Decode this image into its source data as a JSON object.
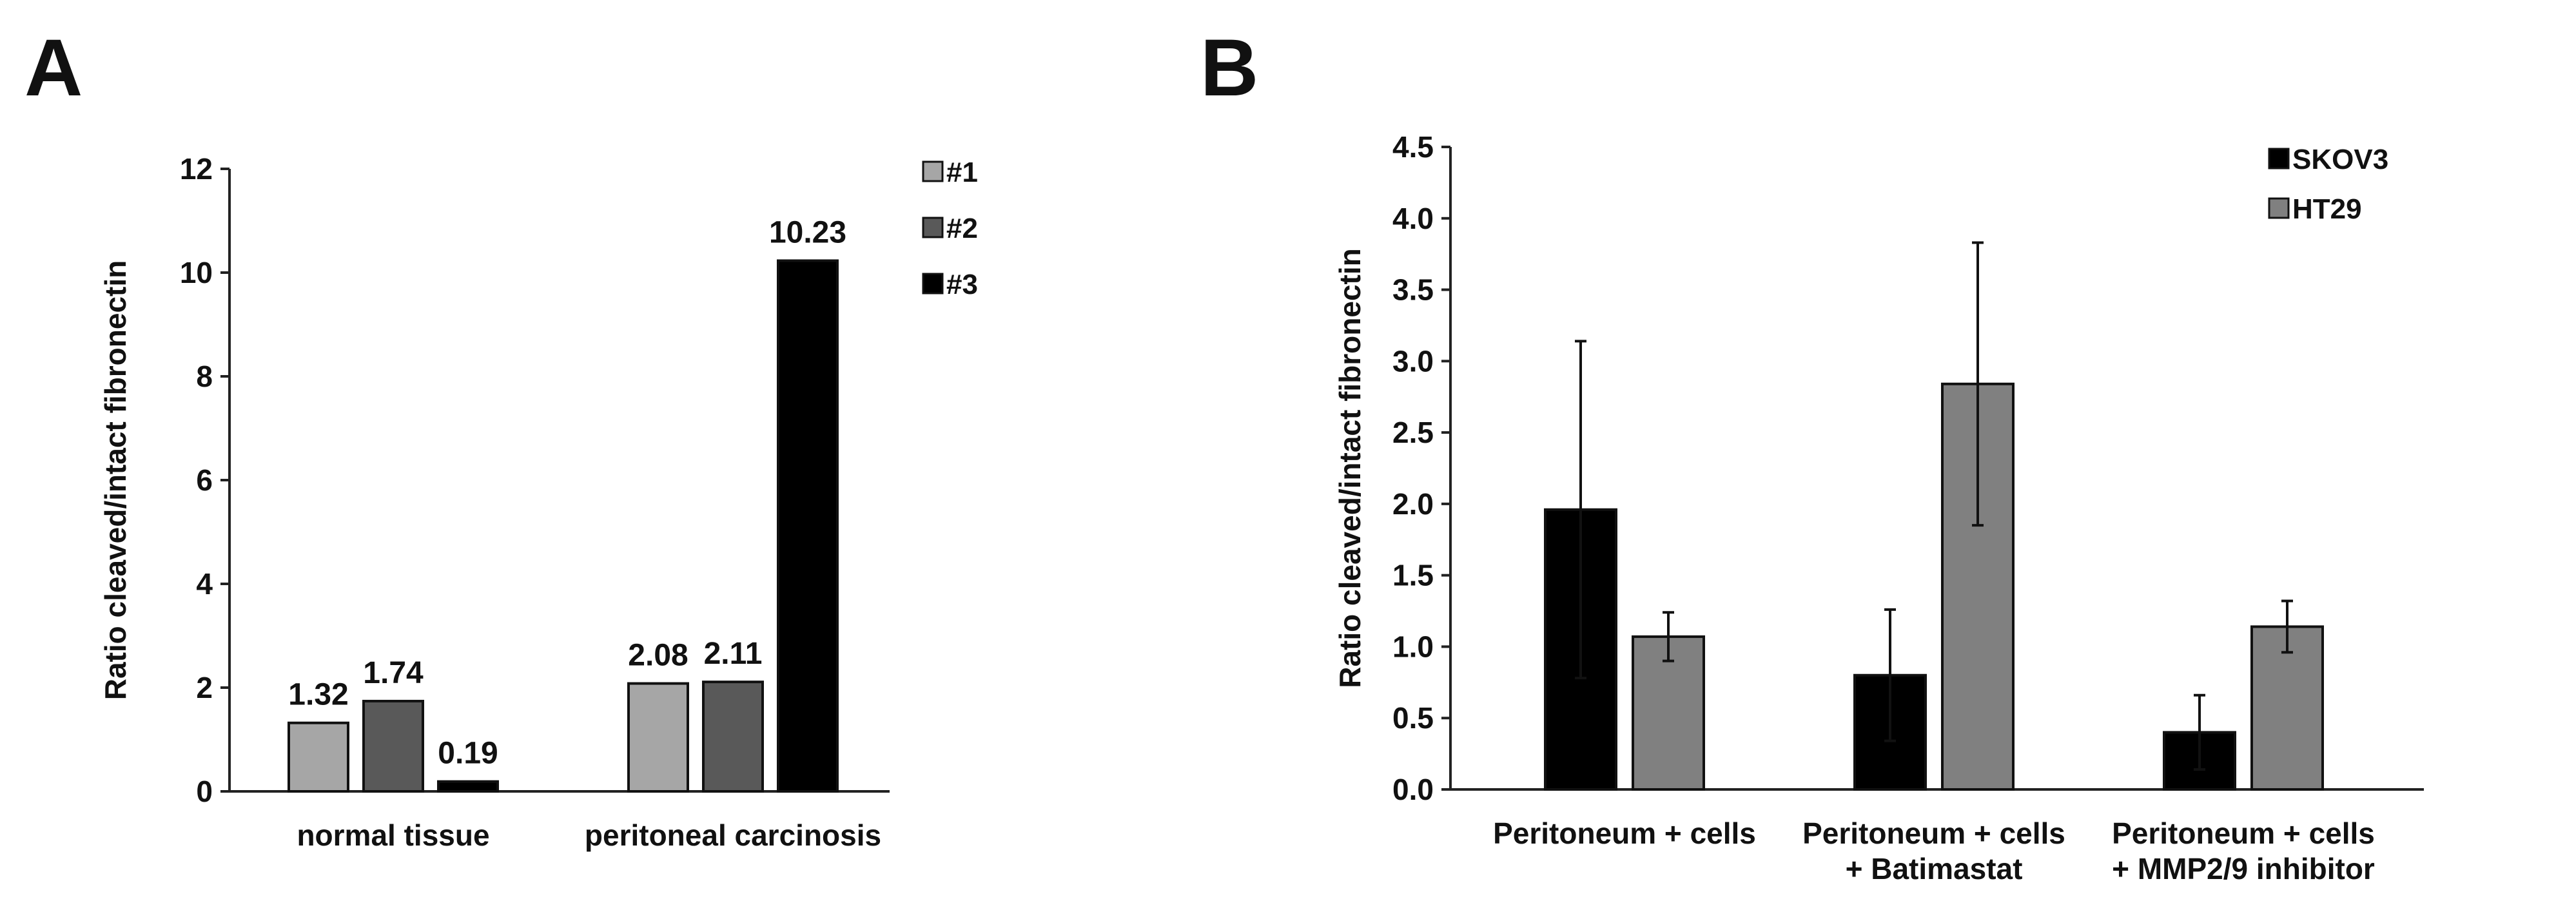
{
  "panels": {
    "A": {
      "letter": "A"
    },
    "B": {
      "letter": "B"
    }
  },
  "colors": {
    "light_gray": "#a6a6a6",
    "dark_gray": "#595959",
    "black": "#000000",
    "mid_gray": "#808080"
  },
  "chart_data": [
    {
      "panel": "A",
      "type": "bar",
      "title": "",
      "xlabel": "",
      "ylabel": "Ratio cleaved/intact fibronectin",
      "ylim": [
        0,
        12
      ],
      "yticks": [
        0,
        2,
        4,
        6,
        8,
        10,
        12
      ],
      "ytick_labels": [
        "0",
        "2",
        "4",
        "6",
        "8",
        "10",
        "12"
      ],
      "categories": [
        "normal tissue",
        "peritoneal carcinosis"
      ],
      "series": [
        {
          "name": "#1",
          "color": "#a6a6a6",
          "values": [
            1.32,
            2.08
          ],
          "labels": [
            "1.32",
            "2.08"
          ]
        },
        {
          "name": "#2",
          "color": "#595959",
          "values": [
            1.74,
            2.11
          ],
          "labels": [
            "1.74",
            "2.11"
          ]
        },
        {
          "name": "#3",
          "color": "#000000",
          "values": [
            0.19,
            10.23
          ],
          "labels": [
            "0.19",
            "10.23"
          ]
        }
      ],
      "legend_position": "top-right",
      "grid": false
    },
    {
      "panel": "B",
      "type": "bar",
      "title": "",
      "xlabel": "",
      "ylabel": "Ratio cleaved/intact fibronectin",
      "ylim": [
        0,
        4.5
      ],
      "yticks": [
        0,
        0.5,
        1.0,
        1.5,
        2.0,
        2.5,
        3.0,
        3.5,
        4.0,
        4.5
      ],
      "ytick_labels": [
        "0.0",
        "0.5",
        "1.0",
        "1.5",
        "2.0",
        "2.5",
        "3.0",
        "3.5",
        "4.0",
        "4.5"
      ],
      "categories": [
        [
          "Peritoneum + cells"
        ],
        [
          "Peritoneum + cells",
          "+ Batimastat"
        ],
        [
          "Peritoneum + cells",
          "+ MMP2/9 inhibitor"
        ]
      ],
      "series": [
        {
          "name": "SKOV3",
          "color": "#000000",
          "values": [
            1.96,
            0.8,
            0.4
          ],
          "errors": [
            1.18,
            0.46,
            0.26
          ]
        },
        {
          "name": "HT29",
          "color": "#808080",
          "values": [
            1.07,
            2.84,
            1.14
          ],
          "errors": [
            0.17,
            0.99,
            0.18
          ]
        }
      ],
      "legend_position": "top-right",
      "grid": false
    }
  ]
}
